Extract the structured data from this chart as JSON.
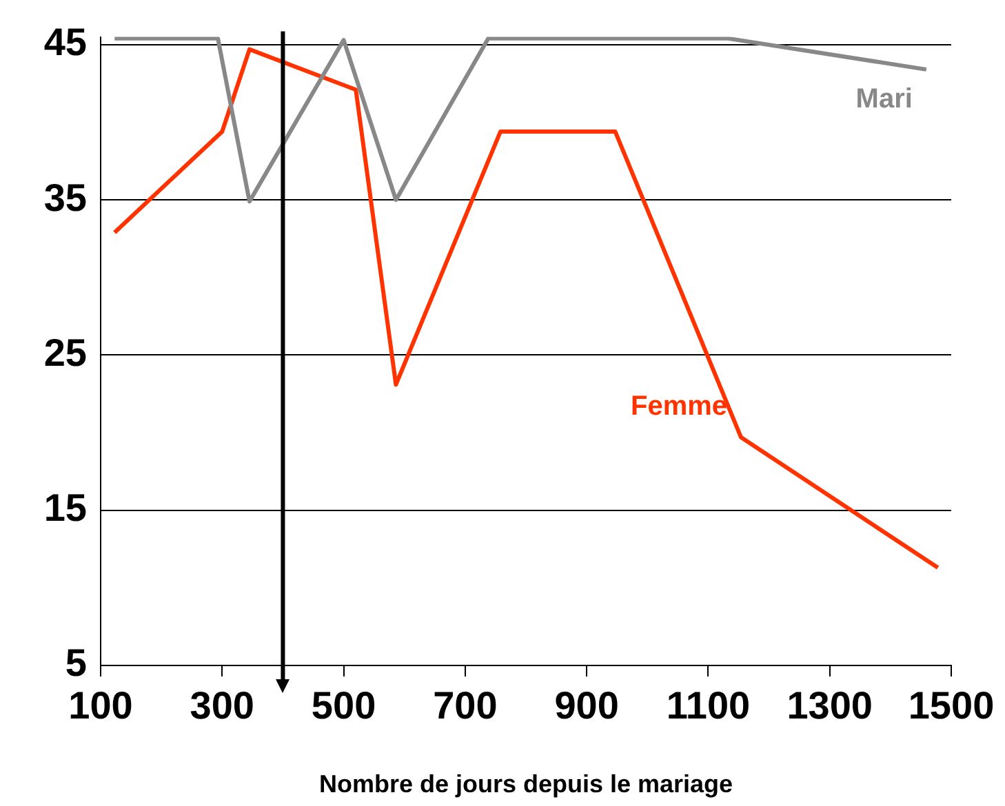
{
  "chart_data": {
    "type": "line",
    "xlabel": "Nombre de jours depuis le mariage",
    "xlim": [
      100,
      1500
    ],
    "xticks": [
      100,
      300,
      500,
      700,
      900,
      1100,
      1300,
      1500
    ],
    "ylim": [
      5,
      45.5
    ],
    "yticks": [
      5,
      15,
      25,
      35,
      45
    ],
    "grid": "y",
    "legend": false,
    "marker": "none",
    "line_style": "solid",
    "series": [
      {
        "name": "Mari",
        "color": "#888888",
        "x": [
          123,
          293,
          345,
          500,
          586,
          738,
          1133,
          1459
        ],
        "values": [
          45.4,
          45.4,
          34.9,
          45.3,
          35,
          45.4,
          45.4,
          43.4
        ]
      },
      {
        "name": "Femme",
        "color": "#ff3300",
        "x": [
          123,
          300,
          345,
          520,
          586,
          758,
          947,
          1154,
          1478
        ],
        "values": [
          32.9,
          39.4,
          44.7,
          42.1,
          23.1,
          39.4,
          39.4,
          19.7,
          11.3
        ]
      }
    ],
    "ref_lines": [
      {
        "axis": "x",
        "value": 400,
        "color": "#000000",
        "line_style": "solid"
      }
    ]
  }
}
